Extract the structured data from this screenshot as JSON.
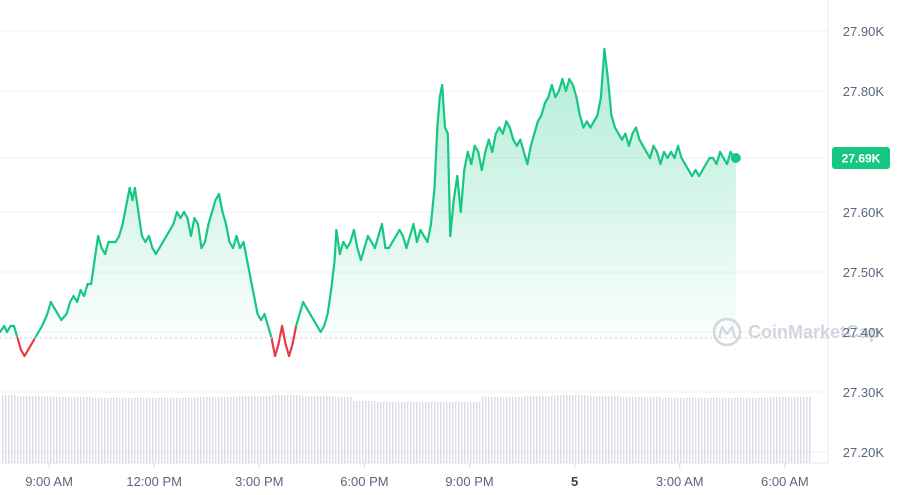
{
  "chart_data": {
    "type": "area",
    "ylim": [
      27.19,
      27.935
    ],
    "y_ticks": [
      {
        "label": "27.90K",
        "value": 27.9
      },
      {
        "label": "27.80K",
        "value": 27.8
      },
      {
        "label": "27.69K",
        "value": 27.69
      },
      {
        "label": "27.60K",
        "value": 27.6
      },
      {
        "label": "27.50K",
        "value": 27.5
      },
      {
        "label": "27.40K",
        "value": 27.4
      },
      {
        "label": "27.30K",
        "value": 27.3
      },
      {
        "label": "27.20K",
        "value": 27.2
      }
    ],
    "x_ticks": [
      {
        "label": "9:00 AM",
        "t": 6
      },
      {
        "label": "12:00 PM",
        "t": 9
      },
      {
        "label": "3:00 PM",
        "t": 12
      },
      {
        "label": "6:00 PM",
        "t": 15
      },
      {
        "label": "9:00 PM",
        "t": 18
      },
      {
        "label": "5",
        "t": 21,
        "bold": true
      },
      {
        "label": "3:00 AM",
        "t": 24
      },
      {
        "label": "6:00 AM",
        "t": 27
      }
    ],
    "open_price": 27.39,
    "current_price_label": "27.69K",
    "current_price": 27.69,
    "series": [
      {
        "values": [
          [
            4.6,
            27.4
          ],
          [
            4.72,
            27.41
          ],
          [
            4.8,
            27.4
          ],
          [
            4.9,
            27.41
          ],
          [
            5.0,
            27.41
          ],
          [
            5.1,
            27.39
          ],
          [
            5.2,
            27.37
          ],
          [
            5.3,
            27.36
          ],
          [
            5.4,
            27.37
          ],
          [
            5.5,
            27.38
          ],
          [
            5.6,
            27.39
          ],
          [
            5.7,
            27.4
          ],
          [
            5.8,
            27.41
          ],
          [
            5.95,
            27.43
          ],
          [
            6.05,
            27.45
          ],
          [
            6.15,
            27.44
          ],
          [
            6.25,
            27.43
          ],
          [
            6.35,
            27.42
          ],
          [
            6.5,
            27.43
          ],
          [
            6.6,
            27.45
          ],
          [
            6.7,
            27.46
          ],
          [
            6.8,
            27.45
          ],
          [
            6.9,
            27.47
          ],
          [
            7.0,
            27.46
          ],
          [
            7.1,
            27.48
          ],
          [
            7.2,
            27.48
          ],
          [
            7.3,
            27.52
          ],
          [
            7.4,
            27.56
          ],
          [
            7.5,
            27.54
          ],
          [
            7.6,
            27.53
          ],
          [
            7.7,
            27.55
          ],
          [
            7.8,
            27.55
          ],
          [
            7.9,
            27.55
          ],
          [
            8.0,
            27.56
          ],
          [
            8.1,
            27.58
          ],
          [
            8.2,
            27.61
          ],
          [
            8.3,
            27.64
          ],
          [
            8.38,
            27.62
          ],
          [
            8.45,
            27.64
          ],
          [
            8.55,
            27.6
          ],
          [
            8.65,
            27.56
          ],
          [
            8.75,
            27.55
          ],
          [
            8.85,
            27.56
          ],
          [
            8.95,
            27.54
          ],
          [
            9.05,
            27.53
          ],
          [
            9.15,
            27.54
          ],
          [
            9.25,
            27.55
          ],
          [
            9.35,
            27.56
          ],
          [
            9.45,
            27.57
          ],
          [
            9.55,
            27.58
          ],
          [
            9.65,
            27.6
          ],
          [
            9.75,
            27.59
          ],
          [
            9.85,
            27.6
          ],
          [
            9.95,
            27.59
          ],
          [
            10.05,
            27.56
          ],
          [
            10.15,
            27.59
          ],
          [
            10.25,
            27.58
          ],
          [
            10.35,
            27.54
          ],
          [
            10.45,
            27.55
          ],
          [
            10.55,
            27.58
          ],
          [
            10.65,
            27.6
          ],
          [
            10.75,
            27.62
          ],
          [
            10.85,
            27.63
          ],
          [
            10.95,
            27.6
          ],
          [
            11.05,
            27.58
          ],
          [
            11.15,
            27.55
          ],
          [
            11.25,
            27.54
          ],
          [
            11.35,
            27.56
          ],
          [
            11.45,
            27.54
          ],
          [
            11.55,
            27.55
          ],
          [
            11.65,
            27.52
          ],
          [
            11.75,
            27.49
          ],
          [
            11.85,
            27.46
          ],
          [
            11.95,
            27.43
          ],
          [
            12.05,
            27.42
          ],
          [
            12.15,
            27.43
          ],
          [
            12.25,
            27.41
          ],
          [
            12.35,
            27.39
          ],
          [
            12.45,
            27.36
          ],
          [
            12.55,
            27.38
          ],
          [
            12.65,
            27.41
          ],
          [
            12.75,
            27.38
          ],
          [
            12.85,
            27.36
          ],
          [
            12.95,
            27.38
          ],
          [
            13.05,
            27.41
          ],
          [
            13.15,
            27.43
          ],
          [
            13.25,
            27.45
          ],
          [
            13.35,
            27.44
          ],
          [
            13.45,
            27.43
          ],
          [
            13.55,
            27.42
          ],
          [
            13.65,
            27.41
          ],
          [
            13.75,
            27.4
          ],
          [
            13.85,
            27.41
          ],
          [
            13.95,
            27.43
          ],
          [
            14.05,
            27.47
          ],
          [
            14.15,
            27.52
          ],
          [
            14.2,
            27.57
          ],
          [
            14.3,
            27.53
          ],
          [
            14.4,
            27.55
          ],
          [
            14.5,
            27.54
          ],
          [
            14.6,
            27.55
          ],
          [
            14.7,
            27.57
          ],
          [
            14.8,
            27.54
          ],
          [
            14.9,
            27.52
          ],
          [
            15.0,
            27.54
          ],
          [
            15.1,
            27.56
          ],
          [
            15.2,
            27.55
          ],
          [
            15.3,
            27.54
          ],
          [
            15.4,
            27.56
          ],
          [
            15.5,
            27.58
          ],
          [
            15.6,
            27.54
          ],
          [
            15.7,
            27.54
          ],
          [
            15.8,
            27.55
          ],
          [
            15.9,
            27.56
          ],
          [
            16.0,
            27.57
          ],
          [
            16.1,
            27.56
          ],
          [
            16.2,
            27.54
          ],
          [
            16.3,
            27.56
          ],
          [
            16.4,
            27.58
          ],
          [
            16.5,
            27.55
          ],
          [
            16.6,
            27.57
          ],
          [
            16.7,
            27.56
          ],
          [
            16.8,
            27.55
          ],
          [
            16.9,
            27.58
          ],
          [
            17.0,
            27.64
          ],
          [
            17.08,
            27.74
          ],
          [
            17.15,
            27.79
          ],
          [
            17.22,
            27.81
          ],
          [
            17.3,
            27.74
          ],
          [
            17.38,
            27.73
          ],
          [
            17.45,
            27.56
          ],
          [
            17.55,
            27.62
          ],
          [
            17.65,
            27.66
          ],
          [
            17.75,
            27.6
          ],
          [
            17.85,
            27.67
          ],
          [
            17.95,
            27.7
          ],
          [
            18.05,
            27.68
          ],
          [
            18.15,
            27.71
          ],
          [
            18.25,
            27.7
          ],
          [
            18.35,
            27.67
          ],
          [
            18.45,
            27.7
          ],
          [
            18.55,
            27.72
          ],
          [
            18.65,
            27.7
          ],
          [
            18.75,
            27.73
          ],
          [
            18.85,
            27.74
          ],
          [
            18.95,
            27.73
          ],
          [
            19.05,
            27.75
          ],
          [
            19.15,
            27.74
          ],
          [
            19.25,
            27.72
          ],
          [
            19.35,
            27.71
          ],
          [
            19.45,
            27.72
          ],
          [
            19.55,
            27.7
          ],
          [
            19.65,
            27.68
          ],
          [
            19.75,
            27.71
          ],
          [
            19.85,
            27.73
          ],
          [
            19.95,
            27.75
          ],
          [
            20.05,
            27.76
          ],
          [
            20.15,
            27.78
          ],
          [
            20.25,
            27.79
          ],
          [
            20.35,
            27.81
          ],
          [
            20.45,
            27.79
          ],
          [
            20.55,
            27.8
          ],
          [
            20.65,
            27.82
          ],
          [
            20.75,
            27.8
          ],
          [
            20.85,
            27.82
          ],
          [
            20.95,
            27.81
          ],
          [
            21.05,
            27.79
          ],
          [
            21.15,
            27.76
          ],
          [
            21.25,
            27.74
          ],
          [
            21.35,
            27.75
          ],
          [
            21.45,
            27.74
          ],
          [
            21.55,
            27.75
          ],
          [
            21.65,
            27.76
          ],
          [
            21.75,
            27.79
          ],
          [
            21.85,
            27.87
          ],
          [
            21.95,
            27.82
          ],
          [
            22.05,
            27.76
          ],
          [
            22.15,
            27.74
          ],
          [
            22.25,
            27.73
          ],
          [
            22.35,
            27.72
          ],
          [
            22.45,
            27.73
          ],
          [
            22.55,
            27.71
          ],
          [
            22.65,
            27.73
          ],
          [
            22.75,
            27.74
          ],
          [
            22.85,
            27.72
          ],
          [
            22.95,
            27.71
          ],
          [
            23.05,
            27.7
          ],
          [
            23.15,
            27.69
          ],
          [
            23.25,
            27.71
          ],
          [
            23.35,
            27.7
          ],
          [
            23.45,
            27.68
          ],
          [
            23.55,
            27.7
          ],
          [
            23.65,
            27.69
          ],
          [
            23.75,
            27.7
          ],
          [
            23.85,
            27.69
          ],
          [
            23.95,
            27.71
          ],
          [
            24.05,
            27.69
          ],
          [
            24.15,
            27.68
          ],
          [
            24.25,
            27.67
          ],
          [
            24.35,
            27.66
          ],
          [
            24.45,
            27.67
          ],
          [
            24.55,
            27.66
          ],
          [
            24.65,
            27.67
          ],
          [
            24.75,
            27.68
          ],
          [
            24.85,
            27.69
          ],
          [
            24.95,
            27.69
          ],
          [
            25.05,
            27.68
          ],
          [
            25.15,
            27.7
          ],
          [
            25.25,
            27.69
          ],
          [
            25.35,
            27.68
          ],
          [
            25.45,
            27.7
          ],
          [
            25.55,
            27.69
          ],
          [
            25.6,
            27.69
          ]
        ]
      }
    ]
  },
  "watermark": {
    "label": "CoinMarketCap"
  },
  "colors": {
    "up": "#16c784",
    "down": "#ea3943",
    "grid": "#eff2f5",
    "baseline": "#d3d8df",
    "volume": "#d9dde3",
    "tick_text": "#58667e"
  }
}
